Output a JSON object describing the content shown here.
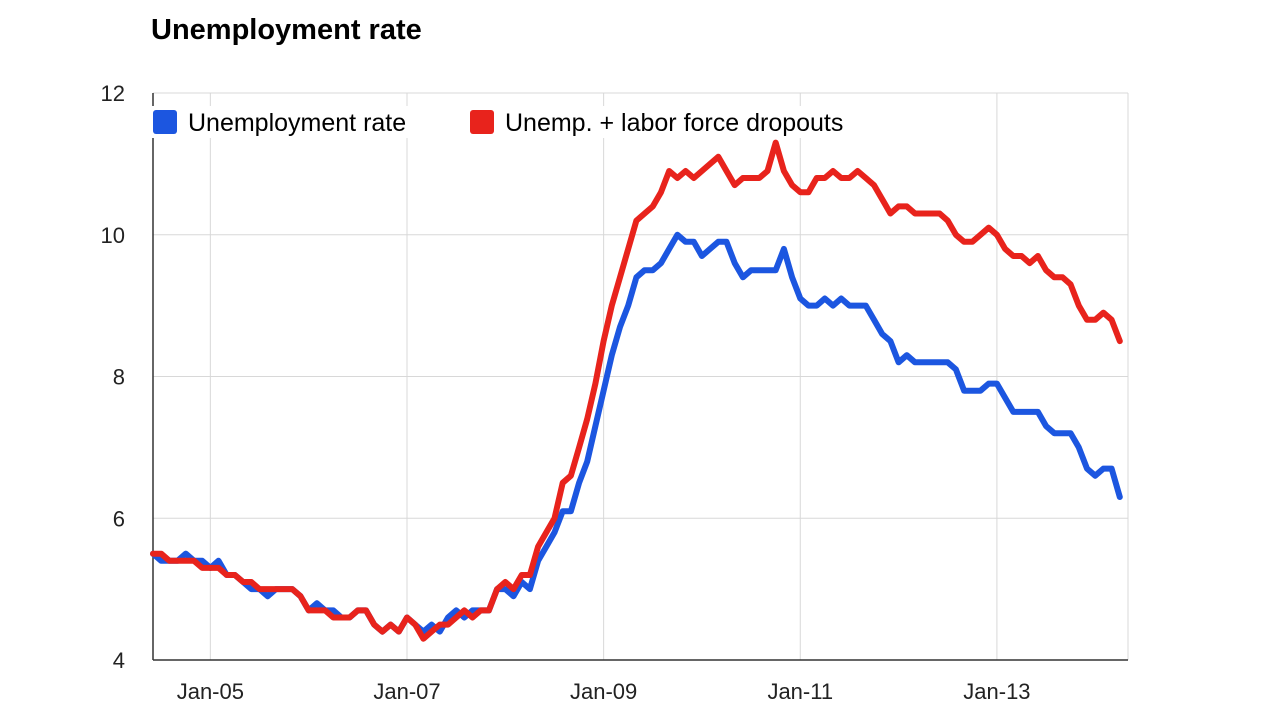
{
  "title": "Unemployment rate",
  "chart_data": {
    "type": "line",
    "title": "Unemployment rate",
    "xlabel": "",
    "ylabel": "",
    "ylim": [
      4,
      12
    ],
    "yticks": [
      "4",
      "6",
      "8",
      "10",
      "12"
    ],
    "xticks": [
      "Jan-05",
      "Jan-07",
      "Jan-09",
      "Jan-11",
      "Jan-13"
    ],
    "grid": true,
    "legend_position": "top-left",
    "series": [
      {
        "name": "Unemployment rate",
        "color": "#1c56e0",
        "points": [
          [
            "2004-06",
            5.5
          ],
          [
            "2004-07",
            5.4
          ],
          [
            "2004-08",
            5.4
          ],
          [
            "2004-09",
            5.4
          ],
          [
            "2004-10",
            5.5
          ],
          [
            "2004-11",
            5.4
          ],
          [
            "2004-12",
            5.4
          ],
          [
            "2005-01",
            5.3
          ],
          [
            "2005-02",
            5.4
          ],
          [
            "2005-03",
            5.2
          ],
          [
            "2005-04",
            5.2
          ],
          [
            "2005-05",
            5.1
          ],
          [
            "2005-06",
            5.0
          ],
          [
            "2005-07",
            5.0
          ],
          [
            "2005-08",
            4.9
          ],
          [
            "2005-09",
            5.0
          ],
          [
            "2005-10",
            5.0
          ],
          [
            "2005-11",
            5.0
          ],
          [
            "2005-12",
            4.9
          ],
          [
            "2006-01",
            4.7
          ],
          [
            "2006-02",
            4.8
          ],
          [
            "2006-03",
            4.7
          ],
          [
            "2006-04",
            4.7
          ],
          [
            "2006-05",
            4.6
          ],
          [
            "2006-06",
            4.6
          ],
          [
            "2006-07",
            4.7
          ],
          [
            "2006-08",
            4.7
          ],
          [
            "2006-09",
            4.5
          ],
          [
            "2006-10",
            4.4
          ],
          [
            "2006-11",
            4.5
          ],
          [
            "2006-12",
            4.4
          ],
          [
            "2007-01",
            4.6
          ],
          [
            "2007-02",
            4.5
          ],
          [
            "2007-03",
            4.4
          ],
          [
            "2007-04",
            4.5
          ],
          [
            "2007-05",
            4.4
          ],
          [
            "2007-06",
            4.6
          ],
          [
            "2007-07",
            4.7
          ],
          [
            "2007-08",
            4.6
          ],
          [
            "2007-09",
            4.7
          ],
          [
            "2007-10",
            4.7
          ],
          [
            "2007-11",
            4.7
          ],
          [
            "2007-12",
            5.0
          ],
          [
            "2008-01",
            5.0
          ],
          [
            "2008-02",
            4.9
          ],
          [
            "2008-03",
            5.1
          ],
          [
            "2008-04",
            5.0
          ],
          [
            "2008-05",
            5.4
          ],
          [
            "2008-06",
            5.6
          ],
          [
            "2008-07",
            5.8
          ],
          [
            "2008-08",
            6.1
          ],
          [
            "2008-09",
            6.1
          ],
          [
            "2008-10",
            6.5
          ],
          [
            "2008-11",
            6.8
          ],
          [
            "2008-12",
            7.3
          ],
          [
            "2009-01",
            7.8
          ],
          [
            "2009-02",
            8.3
          ],
          [
            "2009-03",
            8.7
          ],
          [
            "2009-04",
            9.0
          ],
          [
            "2009-05",
            9.4
          ],
          [
            "2009-06",
            9.5
          ],
          [
            "2009-07",
            9.5
          ],
          [
            "2009-08",
            9.6
          ],
          [
            "2009-09",
            9.8
          ],
          [
            "2009-10",
            10.0
          ],
          [
            "2009-11",
            9.9
          ],
          [
            "2009-12",
            9.9
          ],
          [
            "2010-01",
            9.7
          ],
          [
            "2010-02",
            9.8
          ],
          [
            "2010-03",
            9.9
          ],
          [
            "2010-04",
            9.9
          ],
          [
            "2010-05",
            9.6
          ],
          [
            "2010-06",
            9.4
          ],
          [
            "2010-07",
            9.5
          ],
          [
            "2010-08",
            9.5
          ],
          [
            "2010-09",
            9.5
          ],
          [
            "2010-10",
            9.5
          ],
          [
            "2010-11",
            9.8
          ],
          [
            "2010-12",
            9.4
          ],
          [
            "2011-01",
            9.1
          ],
          [
            "2011-02",
            9.0
          ],
          [
            "2011-03",
            9.0
          ],
          [
            "2011-04",
            9.1
          ],
          [
            "2011-05",
            9.0
          ],
          [
            "2011-06",
            9.1
          ],
          [
            "2011-07",
            9.0
          ],
          [
            "2011-08",
            9.0
          ],
          [
            "2011-09",
            9.0
          ],
          [
            "2011-10",
            8.8
          ],
          [
            "2011-11",
            8.6
          ],
          [
            "2011-12",
            8.5
          ],
          [
            "2012-01",
            8.2
          ],
          [
            "2012-02",
            8.3
          ],
          [
            "2012-03",
            8.2
          ],
          [
            "2012-04",
            8.2
          ],
          [
            "2012-05",
            8.2
          ],
          [
            "2012-06",
            8.2
          ],
          [
            "2012-07",
            8.2
          ],
          [
            "2012-08",
            8.1
          ],
          [
            "2012-09",
            7.8
          ],
          [
            "2012-10",
            7.8
          ],
          [
            "2012-11",
            7.8
          ],
          [
            "2012-12",
            7.9
          ],
          [
            "2013-01",
            7.9
          ],
          [
            "2013-02",
            7.7
          ],
          [
            "2013-03",
            7.5
          ],
          [
            "2013-04",
            7.5
          ],
          [
            "2013-05",
            7.5
          ],
          [
            "2013-06",
            7.5
          ],
          [
            "2013-07",
            7.3
          ],
          [
            "2013-08",
            7.2
          ],
          [
            "2013-09",
            7.2
          ],
          [
            "2013-10",
            7.2
          ],
          [
            "2013-11",
            7.0
          ],
          [
            "2013-12",
            6.7
          ],
          [
            "2014-01",
            6.6
          ],
          [
            "2014-02",
            6.7
          ],
          [
            "2014-03",
            6.7
          ],
          [
            "2014-04",
            6.3
          ]
        ]
      },
      {
        "name": "Unemp. + labor force dropouts",
        "color": "#e8231c",
        "points": [
          [
            "2004-06",
            5.5
          ],
          [
            "2004-07",
            5.5
          ],
          [
            "2004-08",
            5.4
          ],
          [
            "2004-09",
            5.4
          ],
          [
            "2004-10",
            5.4
          ],
          [
            "2004-11",
            5.4
          ],
          [
            "2004-12",
            5.3
          ],
          [
            "2005-01",
            5.3
          ],
          [
            "2005-02",
            5.3
          ],
          [
            "2005-03",
            5.2
          ],
          [
            "2005-04",
            5.2
          ],
          [
            "2005-05",
            5.1
          ],
          [
            "2005-06",
            5.1
          ],
          [
            "2005-07",
            5.0
          ],
          [
            "2005-08",
            5.0
          ],
          [
            "2005-09",
            5.0
          ],
          [
            "2005-10",
            5.0
          ],
          [
            "2005-11",
            5.0
          ],
          [
            "2005-12",
            4.9
          ],
          [
            "2006-01",
            4.7
          ],
          [
            "2006-02",
            4.7
          ],
          [
            "2006-03",
            4.7
          ],
          [
            "2006-04",
            4.6
          ],
          [
            "2006-05",
            4.6
          ],
          [
            "2006-06",
            4.6
          ],
          [
            "2006-07",
            4.7
          ],
          [
            "2006-08",
            4.7
          ],
          [
            "2006-09",
            4.5
          ],
          [
            "2006-10",
            4.4
          ],
          [
            "2006-11",
            4.5
          ],
          [
            "2006-12",
            4.4
          ],
          [
            "2007-01",
            4.6
          ],
          [
            "2007-02",
            4.5
          ],
          [
            "2007-03",
            4.3
          ],
          [
            "2007-04",
            4.4
          ],
          [
            "2007-05",
            4.5
          ],
          [
            "2007-06",
            4.5
          ],
          [
            "2007-07",
            4.6
          ],
          [
            "2007-08",
            4.7
          ],
          [
            "2007-09",
            4.6
          ],
          [
            "2007-10",
            4.7
          ],
          [
            "2007-11",
            4.7
          ],
          [
            "2007-12",
            5.0
          ],
          [
            "2008-01",
            5.1
          ],
          [
            "2008-02",
            5.0
          ],
          [
            "2008-03",
            5.2
          ],
          [
            "2008-04",
            5.2
          ],
          [
            "2008-05",
            5.6
          ],
          [
            "2008-06",
            5.8
          ],
          [
            "2008-07",
            6.0
          ],
          [
            "2008-08",
            6.5
          ],
          [
            "2008-09",
            6.6
          ],
          [
            "2008-10",
            7.0
          ],
          [
            "2008-11",
            7.4
          ],
          [
            "2008-12",
            7.9
          ],
          [
            "2009-01",
            8.5
          ],
          [
            "2009-02",
            9.0
          ],
          [
            "2009-03",
            9.4
          ],
          [
            "2009-04",
            9.8
          ],
          [
            "2009-05",
            10.2
          ],
          [
            "2009-06",
            10.3
          ],
          [
            "2009-07",
            10.4
          ],
          [
            "2009-08",
            10.6
          ],
          [
            "2009-09",
            10.9
          ],
          [
            "2009-10",
            10.8
          ],
          [
            "2009-11",
            10.9
          ],
          [
            "2009-12",
            10.8
          ],
          [
            "2010-01",
            10.9
          ],
          [
            "2010-02",
            11.0
          ],
          [
            "2010-03",
            11.1
          ],
          [
            "2010-04",
            10.9
          ],
          [
            "2010-05",
            10.7
          ],
          [
            "2010-06",
            10.8
          ],
          [
            "2010-07",
            10.8
          ],
          [
            "2010-08",
            10.8
          ],
          [
            "2010-09",
            10.9
          ],
          [
            "2010-10",
            11.3
          ],
          [
            "2010-11",
            10.9
          ],
          [
            "2010-12",
            10.7
          ],
          [
            "2011-01",
            10.6
          ],
          [
            "2011-02",
            10.6
          ],
          [
            "2011-03",
            10.8
          ],
          [
            "2011-04",
            10.8
          ],
          [
            "2011-05",
            10.9
          ],
          [
            "2011-06",
            10.8
          ],
          [
            "2011-07",
            10.8
          ],
          [
            "2011-08",
            10.9
          ],
          [
            "2011-09",
            10.8
          ],
          [
            "2011-10",
            10.7
          ],
          [
            "2011-11",
            10.5
          ],
          [
            "2011-12",
            10.3
          ],
          [
            "2012-01",
            10.4
          ],
          [
            "2012-02",
            10.4
          ],
          [
            "2012-03",
            10.3
          ],
          [
            "2012-04",
            10.3
          ],
          [
            "2012-05",
            10.3
          ],
          [
            "2012-06",
            10.3
          ],
          [
            "2012-07",
            10.2
          ],
          [
            "2012-08",
            10.0
          ],
          [
            "2012-09",
            9.9
          ],
          [
            "2012-10",
            9.9
          ],
          [
            "2012-11",
            10.0
          ],
          [
            "2012-12",
            10.1
          ],
          [
            "2013-01",
            10.0
          ],
          [
            "2013-02",
            9.8
          ],
          [
            "2013-03",
            9.7
          ],
          [
            "2013-04",
            9.7
          ],
          [
            "2013-05",
            9.6
          ],
          [
            "2013-06",
            9.7
          ],
          [
            "2013-07",
            9.5
          ],
          [
            "2013-08",
            9.4
          ],
          [
            "2013-09",
            9.4
          ],
          [
            "2013-10",
            9.3
          ],
          [
            "2013-11",
            9.0
          ],
          [
            "2013-12",
            8.8
          ],
          [
            "2014-01",
            8.8
          ],
          [
            "2014-02",
            8.9
          ],
          [
            "2014-03",
            8.8
          ],
          [
            "2014-04",
            8.5
          ]
        ]
      }
    ]
  }
}
